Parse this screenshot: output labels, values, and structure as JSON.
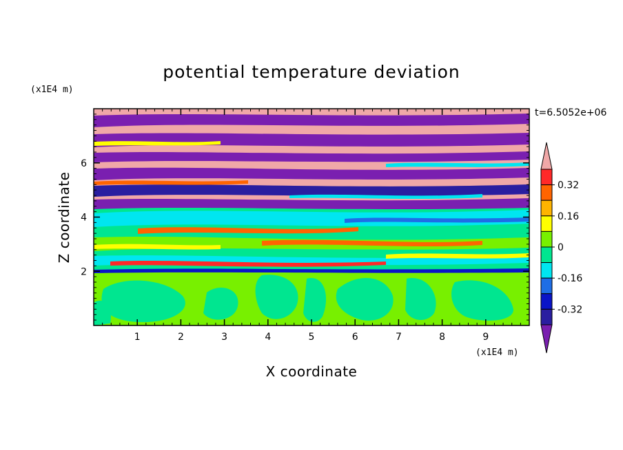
{
  "chart_data": {
    "type": "heatmap",
    "title": "potential temperature deviation",
    "xlabel": "X coordinate",
    "ylabel": "Z coordinate",
    "x_unit": "(x1E4 m)",
    "y_unit": "(x1E4 m)",
    "time_label": "t=6.5052e+06",
    "xlim": [
      0,
      10
    ],
    "ylim": [
      0,
      8
    ],
    "x_ticks": [
      1,
      2,
      3,
      4,
      5,
      6,
      7,
      8,
      9
    ],
    "y_ticks": [
      2,
      4,
      6
    ],
    "colorbar": {
      "levels": [
        -0.4,
        -0.32,
        -0.24,
        -0.16,
        -0.08,
        0,
        0.08,
        0.16,
        0.24,
        0.32,
        0.4
      ],
      "colors": [
        "#7a1fb0",
        "#2a1ea0",
        "#0a14c8",
        "#1e6ee6",
        "#00e6f0",
        "#00e690",
        "#78f000",
        "#ffff00",
        "#ffb400",
        "#ff6400",
        "#ff2828",
        "#f0a8a8"
      ],
      "labels": [
        "0.32",
        "0.16",
        "0",
        "-0.16",
        "-0.32"
      ],
      "label_values": [
        0.32,
        0.16,
        0,
        -0.16,
        -0.32
      ]
    },
    "bands": [
      {
        "z": [
          0.0,
          2.0
        ],
        "value": "green",
        "note": "lower layer, mostly 0 to 0.08"
      },
      {
        "z": [
          2.0,
          4.3
        ],
        "value": "mixed",
        "note": "cyan/green/yellow streaks"
      },
      {
        "z": [
          4.3,
          8.0
        ],
        "value": "alternating",
        "note": "purple and pink stratified bands"
      }
    ]
  }
}
